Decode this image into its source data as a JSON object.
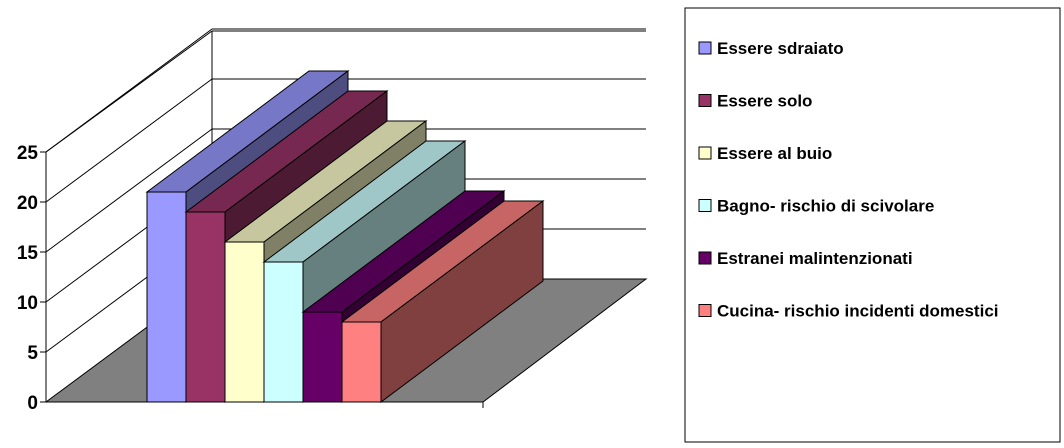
{
  "chart_data": {
    "type": "bar",
    "variant": "3d-depth",
    "title": "",
    "xlabel": "",
    "ylabel": "",
    "ylim": [
      0,
      25
    ],
    "yticks": [
      0,
      5,
      10,
      15,
      20,
      25
    ],
    "grid": true,
    "legend_position": "right",
    "series": [
      {
        "name": "Essere sdraiato",
        "value": 21,
        "color": "#9999ff"
      },
      {
        "name": "Essere solo",
        "value": 19,
        "color": "#993366"
      },
      {
        "name": "Essere al buio",
        "value": 16,
        "color": "#ffffcc"
      },
      {
        "name": "Bagno- rischio di scivolare",
        "value": 14,
        "color": "#ccffff"
      },
      {
        "name": "Estranei malintenzionati",
        "value": 9,
        "color": "#660066"
      },
      {
        "name": "Cucina- rischio incidenti domestici",
        "value": 8,
        "color": "#ff8080"
      }
    ]
  }
}
